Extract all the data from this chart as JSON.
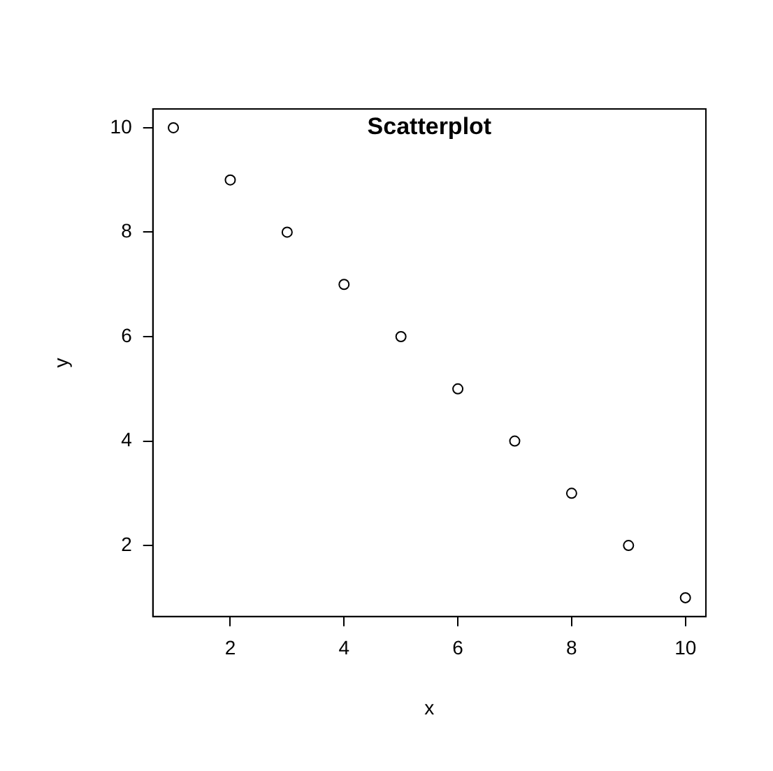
{
  "chart_data": {
    "type": "scatter",
    "title": "Scatterplot",
    "xlabel": "x",
    "ylabel": "y",
    "x": [
      1,
      2,
      3,
      4,
      5,
      6,
      7,
      8,
      9,
      10
    ],
    "series": [
      {
        "color": "#000000",
        "values": [
          10,
          9,
          8,
          7,
          6,
          5,
          4,
          3,
          2,
          1
        ]
      }
    ],
    "xlim": [
      0.64,
      10.36
    ],
    "ylim": [
      0.64,
      10.36
    ],
    "xticks": [
      2,
      4,
      6,
      8,
      10
    ],
    "yticks": [
      2,
      4,
      6,
      8,
      10
    ],
    "grid": false,
    "legend": false,
    "marker": "circle"
  }
}
